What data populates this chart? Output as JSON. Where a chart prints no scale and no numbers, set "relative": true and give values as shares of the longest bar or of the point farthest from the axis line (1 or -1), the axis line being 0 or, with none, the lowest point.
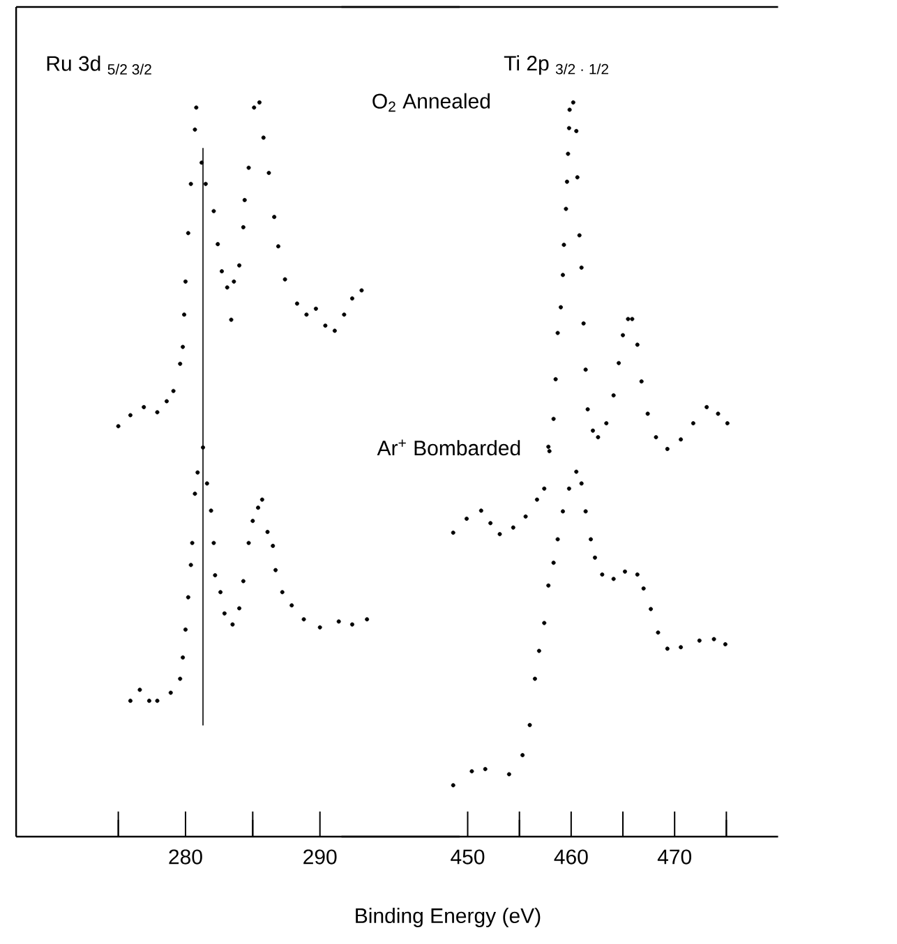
{
  "chart_data": [
    {
      "type": "scatter",
      "title": "Ru  3d $_{5/2   3/2}$",
      "marker": "circle",
      "relative": true,
      "xlim": [
        267.4,
        300.4
      ],
      "xticks": [
        {
          "value": 275,
          "label": null
        },
        280,
        {
          "value": 285,
          "label": null
        },
        290
      ],
      "ref_lines": [
        {
          "axis": "x",
          "value": 281.3,
          "color": "#000000"
        }
      ],
      "series": [
        {
          "name": "O$_{2}$ Annealed",
          "color": "#000000",
          "x": [
            275.0,
            275.9,
            276.9,
            277.9,
            278.6,
            279.1,
            279.6,
            279.8,
            279.9,
            280.0,
            280.2,
            280.4,
            280.7,
            280.8,
            281.2,
            281.5,
            282.1,
            282.4,
            282.7,
            283.1,
            283.4,
            283.6,
            284.0,
            284.3,
            284.4,
            284.7,
            285.1,
            285.5,
            285.8,
            286.2,
            286.6,
            286.9,
            287.4,
            288.3,
            289.0,
            289.7,
            290.4,
            291.1,
            291.8,
            292.4,
            293.1
          ],
          "values": [
            0.559,
            0.574,
            0.585,
            0.578,
            0.593,
            0.607,
            0.644,
            0.667,
            0.711,
            0.756,
            0.822,
            0.889,
            0.963,
            0.993,
            0.918,
            0.889,
            0.852,
            0.807,
            0.77,
            0.748,
            0.704,
            0.756,
            0.778,
            0.83,
            0.867,
            0.911,
            0.993,
            1.0,
            0.952,
            0.904,
            0.844,
            0.804,
            0.759,
            0.726,
            0.711,
            0.719,
            0.696,
            0.689,
            0.711,
            0.733,
            0.744
          ]
        },
        {
          "name": "Ar$^{+}$ Bombarded",
          "color": "#000000",
          "x": [
            275.9,
            276.6,
            277.3,
            277.9,
            278.9,
            279.6,
            279.8,
            280.0,
            280.2,
            280.4,
            280.5,
            280.7,
            280.9,
            281.3,
            281.6,
            281.9,
            282.1,
            282.2,
            282.6,
            282.9,
            283.5,
            284.0,
            284.3,
            284.7,
            285.0,
            285.4,
            285.7,
            286.1,
            286.5,
            286.7,
            287.2,
            287.9,
            288.8,
            290.0,
            291.4,
            292.4,
            293.5
          ],
          "values": [
            0.185,
            0.2,
            0.185,
            0.185,
            0.196,
            0.215,
            0.244,
            0.282,
            0.326,
            0.37,
            0.4,
            0.467,
            0.496,
            0.53,
            0.481,
            0.444,
            0.4,
            0.356,
            0.333,
            0.304,
            0.289,
            0.311,
            0.348,
            0.4,
            0.43,
            0.448,
            0.459,
            0.415,
            0.396,
            0.363,
            0.333,
            0.315,
            0.296,
            0.285,
            0.293,
            0.289,
            0.296
          ]
        }
      ]
    },
    {
      "type": "scatter",
      "title": "Ti 2p $_{3/2 · 1/2}$",
      "xlabel": "Binding Energy (eV)",
      "marker": "circle",
      "relative": true,
      "xlim": [
        437.8,
        480.0
      ],
      "xticks": [
        450,
        {
          "value": 455,
          "label": null
        },
        460,
        {
          "value": 465,
          "label": null
        },
        470,
        {
          "value": 475,
          "label": null
        }
      ],
      "series": [
        {
          "color": "#000000",
          "x": [
            448.6,
            449.9,
            451.3,
            452.2,
            453.1,
            454.4,
            455.6,
            456.7,
            457.4,
            457.8,
            457.9,
            458.3,
            458.5,
            458.7,
            459.0,
            459.2,
            459.3,
            459.5,
            459.6,
            459.7,
            459.8,
            459.85,
            460.2,
            460.5,
            460.6,
            460.8,
            461.0,
            461.2,
            461.4,
            461.6,
            462.1,
            462.6,
            463.4,
            464.1,
            464.6,
            465.0,
            465.5,
            465.9,
            466.4,
            466.8,
            467.4,
            468.2,
            469.3,
            470.6,
            471.8,
            473.1,
            474.2,
            475.1
          ],
          "values": [
            0.414,
            0.433,
            0.444,
            0.427,
            0.412,
            0.421,
            0.436,
            0.459,
            0.474,
            0.531,
            0.525,
            0.569,
            0.623,
            0.686,
            0.721,
            0.765,
            0.806,
            0.855,
            0.892,
            0.93,
            0.965,
            0.99,
            1.0,
            0.961,
            0.898,
            0.819,
            0.775,
            0.699,
            0.636,
            0.582,
            0.553,
            0.544,
            0.563,
            0.601,
            0.645,
            0.683,
            0.705,
            0.705,
            0.67,
            0.62,
            0.576,
            0.544,
            0.528,
            0.541,
            0.563,
            0.585,
            0.576,
            0.563
          ]
        },
        {
          "color": "#000000",
          "x": [
            448.6,
            450.4,
            451.7,
            454.0,
            455.3,
            456.0,
            456.5,
            456.9,
            457.4,
            457.8,
            458.3,
            458.7,
            459.2,
            459.8,
            460.5,
            461.0,
            461.4,
            461.9,
            462.3,
            463.0,
            464.1,
            465.2,
            466.4,
            467.0,
            467.7,
            468.4,
            469.3,
            470.6,
            472.4,
            473.8,
            474.9
          ],
          "values": [
            0.07,
            0.089,
            0.092,
            0.085,
            0.111,
            0.152,
            0.215,
            0.253,
            0.291,
            0.342,
            0.373,
            0.405,
            0.443,
            0.474,
            0.497,
            0.481,
            0.443,
            0.405,
            0.38,
            0.357,
            0.351,
            0.361,
            0.357,
            0.338,
            0.31,
            0.278,
            0.256,
            0.258,
            0.267,
            0.269,
            0.262
          ]
        }
      ]
    }
  ]
}
